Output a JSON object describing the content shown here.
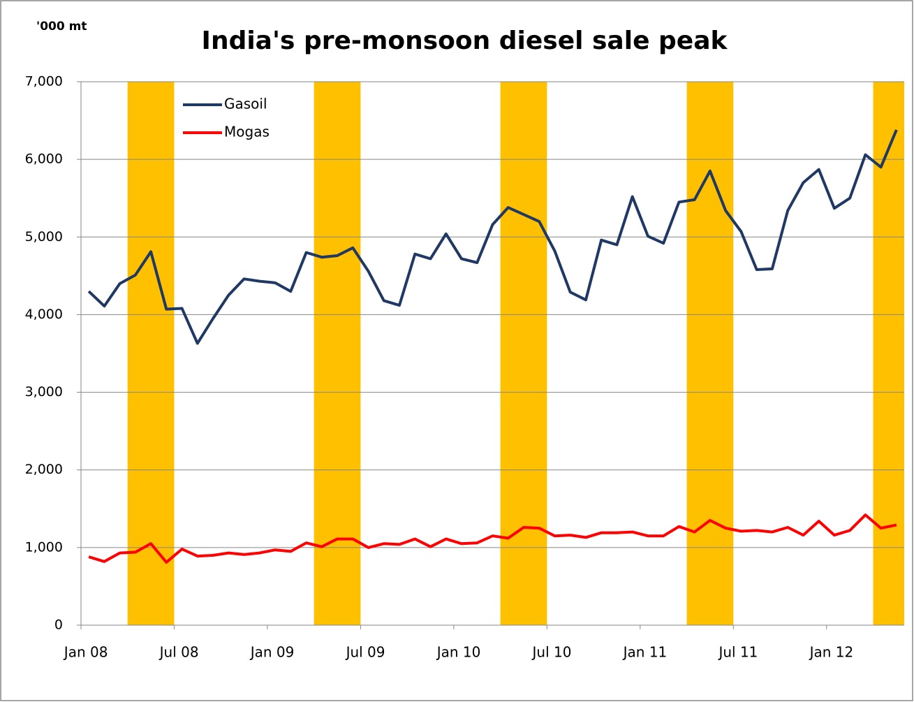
{
  "chart_data": {
    "type": "line",
    "title": "India's pre-monsoon diesel sale peak",
    "y_label": "'000 mt",
    "categories": [
      "Jan 08",
      null,
      null,
      null,
      null,
      null,
      "Jul 08",
      null,
      null,
      null,
      null,
      null,
      "Jan 09",
      null,
      null,
      null,
      null,
      null,
      "Jul 09",
      null,
      null,
      null,
      null,
      null,
      "Jan 10",
      null,
      null,
      null,
      null,
      null,
      "Jul 10",
      null,
      null,
      null,
      null,
      null,
      "Jan 11",
      null,
      null,
      null,
      null,
      null,
      "Jul 11",
      null,
      null,
      null,
      null,
      null,
      "Jan 12",
      null,
      null,
      null,
      null
    ],
    "series": [
      {
        "name": "Gasoil",
        "color": "#1f3864",
        "values": [
          4300,
          4110,
          4400,
          4510,
          4810,
          4070,
          4080,
          3630,
          3950,
          4250,
          4460,
          4430,
          4410,
          4300,
          4800,
          4740,
          4760,
          4860,
          4560,
          4180,
          4120,
          4780,
          4720,
          5040,
          4720,
          4670,
          5160,
          5380,
          5290,
          5200,
          4820,
          4290,
          4190,
          4960,
          4900,
          5520,
          5010,
          4920,
          5450,
          5480,
          5850,
          5340,
          5070,
          4580,
          4590,
          5340,
          5700,
          5870,
          5370,
          5500,
          6060,
          5900,
          6380
        ]
      },
      {
        "name": "Mogas",
        "color": "#ff0000",
        "values": [
          880,
          820,
          930,
          940,
          1050,
          810,
          980,
          890,
          900,
          930,
          910,
          930,
          970,
          950,
          1060,
          1010,
          1110,
          1110,
          1000,
          1050,
          1040,
          1110,
          1010,
          1110,
          1050,
          1060,
          1150,
          1120,
          1260,
          1250,
          1150,
          1160,
          1130,
          1190,
          1190,
          1200,
          1150,
          1150,
          1270,
          1200,
          1350,
          1250,
          1210,
          1220,
          1200,
          1260,
          1160,
          1340,
          1160,
          1220,
          1420,
          1250,
          1290
        ]
      }
    ],
    "bands": [
      {
        "from": 3,
        "to": 5
      },
      {
        "from": 15,
        "to": 17
      },
      {
        "from": 27,
        "to": 29
      },
      {
        "from": 39,
        "to": 41
      },
      {
        "from": 51,
        "to": 52
      }
    ],
    "band_color": "#ffc000",
    "ylim": [
      0,
      7000
    ],
    "yticks": [
      0,
      {
        "value": 1000,
        "label": "1,000"
      },
      {
        "value": 2000,
        "label": "2,000"
      },
      {
        "value": 3000,
        "label": "3,000"
      },
      {
        "value": 4000,
        "label": "4,000"
      },
      {
        "value": 5000,
        "label": "5,000"
      },
      {
        "value": 6000,
        "label": "6,000"
      },
      {
        "value": 7000,
        "label": "7,000"
      }
    ],
    "grid": true,
    "legend": "top-left"
  }
}
